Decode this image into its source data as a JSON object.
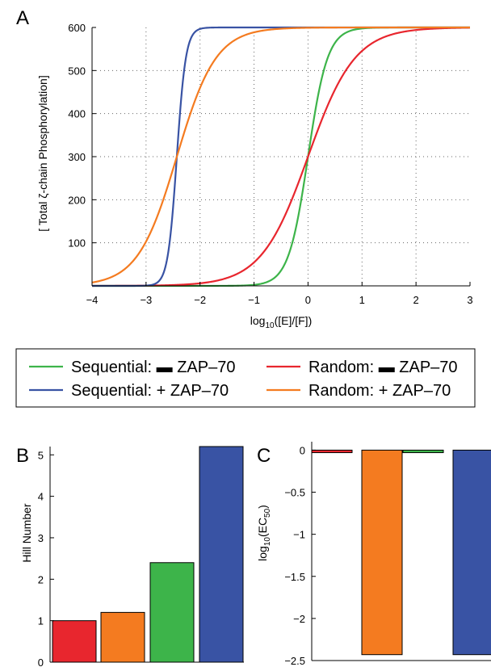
{
  "chart_data": [
    {
      "panel": "A",
      "type": "line",
      "xlabel_prefix": "log",
      "xlabel_sub": "10",
      "xlabel_suffix": "([E]/[F])",
      "ylabel": "[ Total ζ-chain Phosphorylation]",
      "xlim": [
        -4,
        3
      ],
      "ylim": [
        0,
        600
      ],
      "xticks": [
        -4,
        -3,
        -2,
        -1,
        0,
        1,
        2,
        3
      ],
      "yticks": [
        100,
        200,
        300,
        400,
        500,
        600
      ],
      "grid": true,
      "series": [
        {
          "name": "Sequential: ▬ ZAP–70",
          "color": "#3db44a",
          "midpoint": 0.0,
          "hill": 2.4,
          "max": 600
        },
        {
          "name": "Random: ▬ ZAP–70",
          "color": "#e8262e",
          "midpoint": 0.0,
          "hill": 1.0,
          "max": 600
        },
        {
          "name": "Sequential: + ZAP–70",
          "color": "#3953a4",
          "midpoint": -2.43,
          "hill": 5.2,
          "max": 600
        },
        {
          "name": "Random: + ZAP–70",
          "color": "#f47b20",
          "midpoint": -2.43,
          "hill": 1.2,
          "max": 600
        }
      ]
    },
    {
      "panel": "B",
      "type": "bar",
      "ylabel": "Hill Number",
      "ylim": [
        0,
        5.2
      ],
      "yticks": [
        0,
        1,
        2,
        3,
        4,
        5
      ],
      "values": [
        1.0,
        1.2,
        2.4,
        5.2
      ],
      "colors": [
        "#e8262e",
        "#f47b20",
        "#3db44a",
        "#3953a4"
      ]
    },
    {
      "panel": "C",
      "type": "bar",
      "ylabel_prefix": "log",
      "ylabel_sub": "10",
      "ylabel_mid": "(EC",
      "ylabel_sub2": "50",
      "ylabel_suffix": ")",
      "ylim": [
        -2.5,
        0.1
      ],
      "yticks": [
        0,
        -0.5,
        -1,
        -1.5,
        -2,
        -2.5
      ],
      "values": [
        -0.03,
        -2.43,
        -0.03,
        -2.43
      ],
      "colors": [
        "#e8262e",
        "#f47b20",
        "#3db44a",
        "#3953a4"
      ]
    }
  ],
  "legend": {
    "items": [
      {
        "label": "Sequential: ▬ ZAP–70",
        "color": "#3db44a"
      },
      {
        "label": "Random: ▬ ZAP–70",
        "color": "#e8262e"
      },
      {
        "label": "Sequential: + ZAP–70",
        "color": "#3953a4"
      },
      {
        "label": "Random: + ZAP–70",
        "color": "#f47b20"
      }
    ]
  },
  "panels": {
    "a": "A",
    "b": "B",
    "c": "C"
  }
}
